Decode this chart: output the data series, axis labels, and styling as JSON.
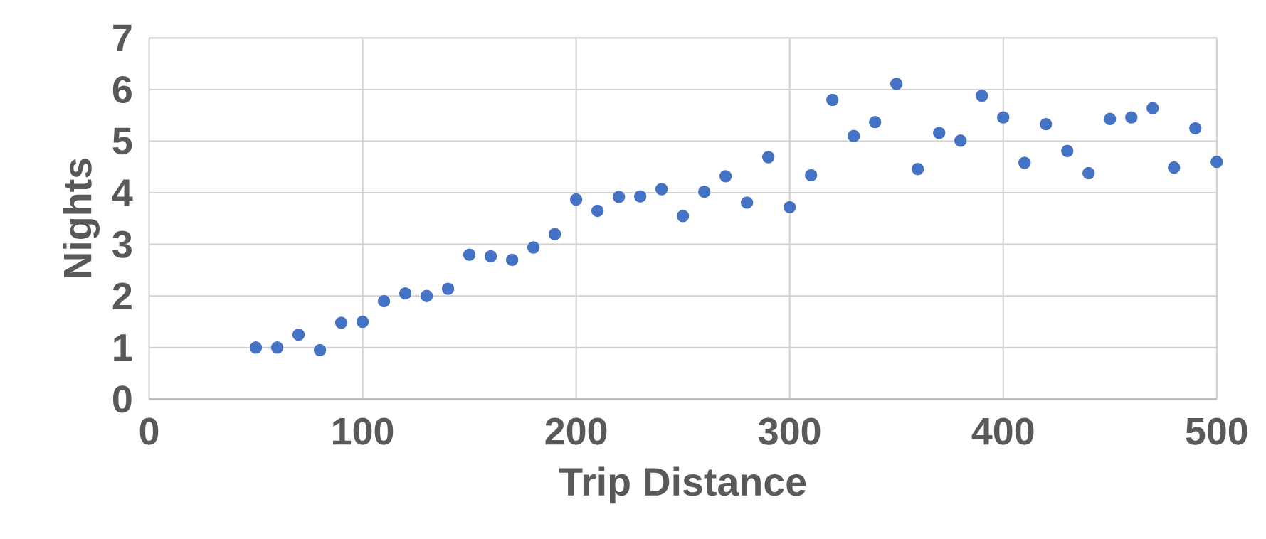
{
  "chart_data": {
    "type": "scatter",
    "xlabel": "Trip Distance",
    "ylabel": "Nights",
    "x": [
      50,
      60,
      70,
      80,
      90,
      100,
      110,
      120,
      130,
      140,
      150,
      160,
      170,
      180,
      190,
      200,
      210,
      220,
      230,
      240,
      250,
      260,
      270,
      280,
      290,
      300,
      310,
      320,
      330,
      340,
      350,
      360,
      370,
      380,
      390,
      400,
      410,
      420,
      430,
      440,
      450,
      460,
      470,
      480,
      490,
      500
    ],
    "values": [
      1.0,
      1.0,
      1.25,
      0.95,
      1.48,
      1.5,
      1.9,
      2.05,
      2.0,
      2.14,
      2.8,
      2.77,
      2.7,
      2.94,
      3.2,
      3.87,
      3.65,
      3.92,
      3.93,
      4.07,
      3.55,
      4.02,
      4.32,
      3.81,
      4.69,
      3.72,
      4.34,
      5.8,
      5.1,
      5.37,
      6.11,
      4.46,
      5.16,
      5.01,
      5.88,
      5.46,
      4.58,
      5.33,
      4.81,
      4.38,
      5.43,
      5.46,
      5.64,
      4.49,
      5.25,
      4.6
    ],
    "color": "#4472c4",
    "marker": "circle",
    "grid": true,
    "xlim": [
      0,
      500
    ],
    "ylim": [
      0,
      7
    ],
    "xticks": [
      0,
      100,
      200,
      300,
      400,
      500
    ],
    "yticks": [
      0,
      1,
      2,
      3,
      4,
      5,
      6,
      7
    ]
  }
}
